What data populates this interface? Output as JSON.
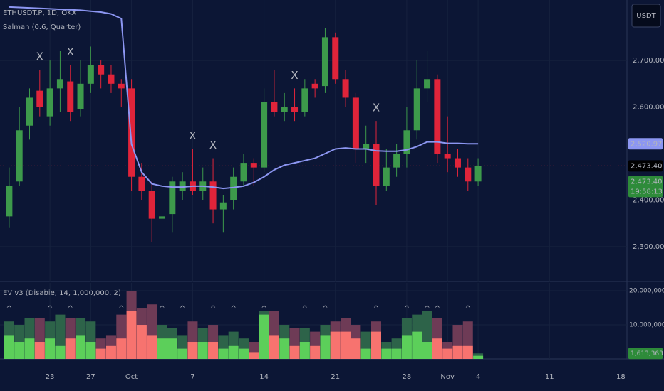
{
  "toolbar": {
    "currency": "USDT"
  },
  "chart_data": [
    {
      "type": "candlestick",
      "title": "ETHUSDT.P, 1D, OKX",
      "open": [
        2365,
        2440,
        2560,
        2635,
        2580,
        2640,
        2655,
        2595,
        2650,
        2690,
        2670,
        2650,
        2640,
        2450,
        2420,
        2360,
        2370,
        2420,
        2440,
        2420,
        2440,
        2380,
        2400,
        2440,
        2480,
        2470,
        2610,
        2590,
        2600,
        2590,
        2650,
        2645,
        2750,
        2660,
        2620,
        2510,
        2520,
        2430,
        2470,
        2500,
        2550,
        2640,
        2660,
        2500,
        2490,
        2470,
        2440
      ],
      "high": [
        2470,
        2600,
        2640,
        2680,
        2700,
        2720,
        2690,
        2700,
        2730,
        2700,
        2690,
        2660,
        2660,
        2480,
        2440,
        2420,
        2450,
        2460,
        2510,
        2470,
        2490,
        2410,
        2470,
        2500,
        2490,
        2640,
        2680,
        2630,
        2640,
        2660,
        2660,
        2770,
        2760,
        2680,
        2630,
        2560,
        2570,
        2510,
        2520,
        2600,
        2700,
        2720,
        2670,
        2580,
        2510,
        2490,
        2490
      ],
      "low": [
        2340,
        2430,
        2530,
        2580,
        2560,
        2590,
        2570,
        2580,
        2630,
        2640,
        2630,
        2600,
        2420,
        2400,
        2310,
        2340,
        2330,
        2400,
        2410,
        2400,
        2350,
        2330,
        2380,
        2430,
        2430,
        2460,
        2580,
        2570,
        2570,
        2580,
        2620,
        2630,
        2650,
        2600,
        2480,
        2480,
        2390,
        2420,
        2450,
        2470,
        2530,
        2610,
        2480,
        2460,
        2450,
        2420,
        2430
      ],
      "close": [
        2430,
        2550,
        2620,
        2600,
        2640,
        2660,
        2590,
        2650,
        2690,
        2670,
        2650,
        2640,
        2450,
        2420,
        2360,
        2365,
        2440,
        2440,
        2420,
        2440,
        2380,
        2395,
        2450,
        2480,
        2470,
        2610,
        2590,
        2600,
        2590,
        2640,
        2640,
        2750,
        2660,
        2620,
        2510,
        2520,
        2430,
        2470,
        2500,
        2550,
        2640,
        2660,
        2500,
        2490,
        2470,
        2440,
        2473.4
      ],
      "up_color": "#3d9a4b",
      "down_color": "#e0243a",
      "line": {
        "name": "Salman (0.6, Quarter)",
        "color": "#8c96f2",
        "values": [
          2815,
          2814,
          2813,
          2812,
          2811,
          2810,
          2809,
          2808,
          2806,
          2804,
          2800,
          2790,
          2520,
          2460,
          2435,
          2430,
          2428,
          2428,
          2430,
          2430,
          2428,
          2425,
          2427,
          2430,
          2438,
          2450,
          2465,
          2475,
          2480,
          2485,
          2490,
          2500,
          2510,
          2512,
          2510,
          2510,
          2506,
          2505,
          2505,
          2508,
          2515,
          2525,
          2525,
          2522,
          2522,
          2521,
          2520.97
        ]
      },
      "signals": [
        {
          "at": 3,
          "label": "X"
        },
        {
          "at": 6,
          "label": "X"
        },
        {
          "at": 18,
          "label": "X"
        },
        {
          "at": 20,
          "label": "X"
        },
        {
          "at": 28,
          "label": "X"
        },
        {
          "at": 36,
          "label": "X"
        }
      ],
      "price_labels": [
        {
          "value": 2520.97,
          "label": "2,520.97",
          "color": "#8c96f2"
        },
        {
          "value": 2473.4,
          "label": "2,473.40",
          "color": "#000000"
        },
        {
          "value": 2473.4,
          "label": "2,473.40",
          "color": "#2e8b3a",
          "countdown": "19:58:13"
        }
      ],
      "ylim": [
        2225,
        2830
      ],
      "yticks": [
        {
          "value": 2300,
          "label": "2,300.00"
        },
        {
          "value": 2400,
          "label": "2,400.00"
        },
        {
          "value": 2600,
          "label": "2,600.00"
        },
        {
          "value": 2700,
          "label": "2,700.00"
        }
      ],
      "xlim": [
        -0.9,
        60.6
      ],
      "xticks": [
        {
          "value": 4,
          "label": "23"
        },
        {
          "value": 8,
          "label": "27"
        },
        {
          "value": 12,
          "label": "Oct"
        },
        {
          "value": 18,
          "label": "7"
        },
        {
          "value": 25,
          "label": "14"
        },
        {
          "value": 32,
          "label": "21"
        },
        {
          "value": 39,
          "label": "28"
        },
        {
          "value": 43,
          "label": "Nov"
        },
        {
          "value": 46,
          "label": "4"
        },
        {
          "value": 53,
          "label": "11"
        },
        {
          "value": 60,
          "label": "18"
        }
      ],
      "grid": true
    },
    {
      "type": "bar",
      "title": "EV v3 (Disable, 14, 1,000,000, 2)",
      "values": [
        11000000,
        10000000,
        12000000,
        12000000,
        11000000,
        13000000,
        12000000,
        12000000,
        11000000,
        6000000,
        7000000,
        13000000,
        20000000,
        15000000,
        16000000,
        10000000,
        9000000,
        7000000,
        11000000,
        9000000,
        10000000,
        7000000,
        8000000,
        6000000,
        5000000,
        14000000,
        14000000,
        10000000,
        9000000,
        9000000,
        8000000,
        10000000,
        11000000,
        12000000,
        10000000,
        8000000,
        11000000,
        5000000,
        6000000,
        12000000,
        13000000,
        14000000,
        12000000,
        5000000,
        10000000,
        11000000,
        1613363
      ],
      "inner_values": [
        7000000,
        5000000,
        6000000,
        5000000,
        6000000,
        4000000,
        6000000,
        7000000,
        5000000,
        3000000,
        4000000,
        6000000,
        14000000,
        10000000,
        7000000,
        6000000,
        6000000,
        3000000,
        5000000,
        5000000,
        5000000,
        3000000,
        4000000,
        3000000,
        2000000,
        13000000,
        7000000,
        6000000,
        4000000,
        5000000,
        4000000,
        7000000,
        8000000,
        8000000,
        6000000,
        3000000,
        8000000,
        3000000,
        3000000,
        7000000,
        8000000,
        5000000,
        6000000,
        3000000,
        4000000,
        4000000,
        900000
      ],
      "up_colors": [
        "#2d6349",
        "#5ccf5a"
      ],
      "down_colors": [
        "#6e3b56",
        "#f7736f"
      ],
      "signals": [
        {
          "at": 0,
          "label": "^",
          "color": "#5ccf5a"
        },
        {
          "at": 4,
          "label": "^",
          "color": "#5ccf5a"
        },
        {
          "at": 6,
          "label": "^",
          "color": "#f7736f"
        },
        {
          "at": 11,
          "label": "^",
          "color": "#f7736f"
        },
        {
          "at": 15,
          "label": "^",
          "color": "#5ccf5a"
        },
        {
          "at": 17,
          "label": "^",
          "color": "#5ccf5a"
        },
        {
          "at": 20,
          "label": "^",
          "color": "#f7736f"
        },
        {
          "at": 22,
          "label": "^",
          "color": "#5ccf5a"
        },
        {
          "at": 25,
          "label": "^",
          "color": "#5ccf5a"
        },
        {
          "at": 29,
          "label": "^",
          "color": "#5ccf5a"
        },
        {
          "at": 31,
          "label": "^",
          "color": "#5ccf5a"
        },
        {
          "at": 36,
          "label": "^",
          "color": "#f7736f"
        },
        {
          "at": 39,
          "label": "^",
          "color": "#5ccf5a"
        },
        {
          "at": 41,
          "label": "^",
          "color": "#5ccf5a"
        },
        {
          "at": 42,
          "label": "^",
          "color": "#f7736f"
        },
        {
          "at": 45,
          "label": "^",
          "color": "#f7736f"
        }
      ],
      "last_label": {
        "value": 1613363,
        "label": "1,613,363",
        "color": "#2e8b3a"
      },
      "ylim": [
        0,
        22300000
      ],
      "yticks": [
        {
          "value": 10000000,
          "label": "10,000,000"
        },
        {
          "value": 20000000,
          "label": "20,000,000"
        }
      ],
      "grid": true
    }
  ]
}
